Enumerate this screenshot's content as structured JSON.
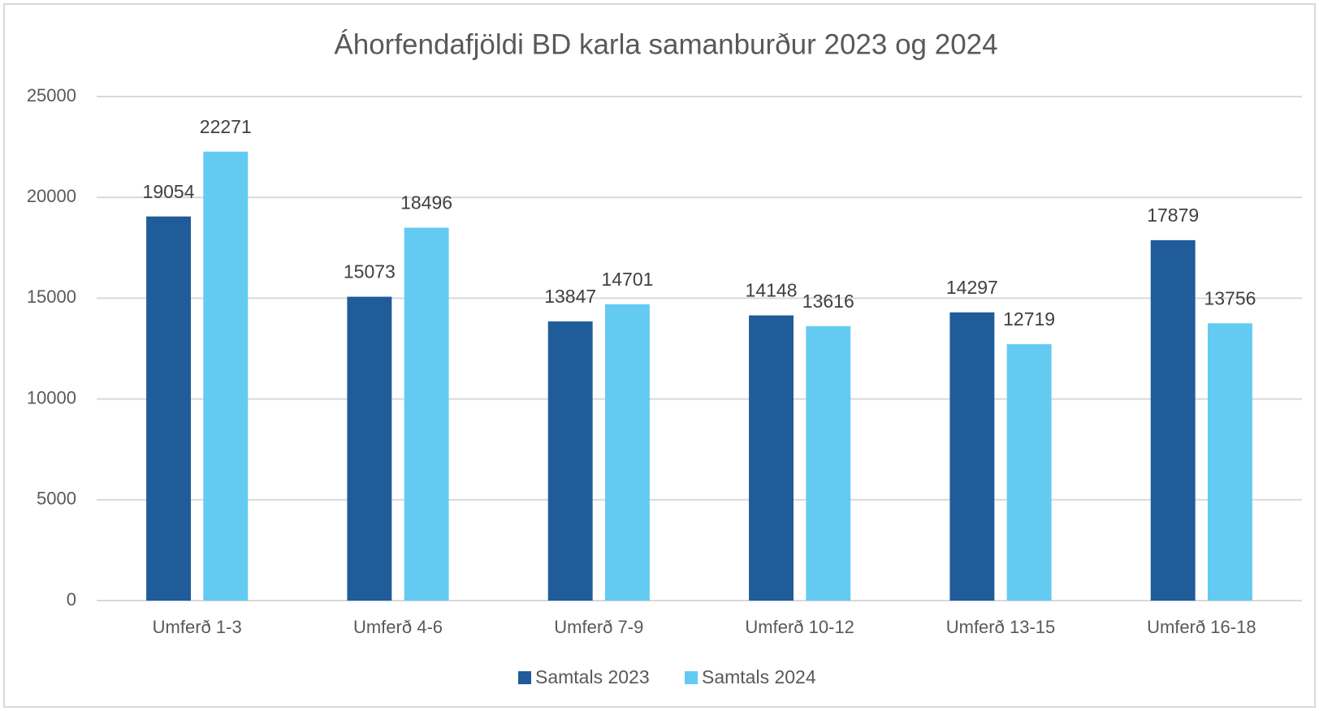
{
  "chart_data": {
    "type": "bar",
    "title": "Áhorfendafjöldi BD karla samanburður 2023 og 2024",
    "categories": [
      "Umferð 1-3",
      "Umferð 4-6",
      "Umferð 7-9",
      "Umferð 10-12",
      "Umferð 13-15",
      "Umferð 16-18"
    ],
    "series": [
      {
        "name": "Samtals 2023",
        "color": "#1f5c99",
        "values": [
          19054,
          15073,
          13847,
          14148,
          14297,
          17879
        ]
      },
      {
        "name": "Samtals 2024",
        "color": "#63cbf2",
        "values": [
          22271,
          18496,
          14701,
          13616,
          12719,
          13756
        ]
      }
    ],
    "ylim": [
      0,
      25000
    ],
    "yticks": [
      0,
      5000,
      10000,
      15000,
      20000,
      25000
    ],
    "grid": true,
    "legend": "bottom"
  }
}
